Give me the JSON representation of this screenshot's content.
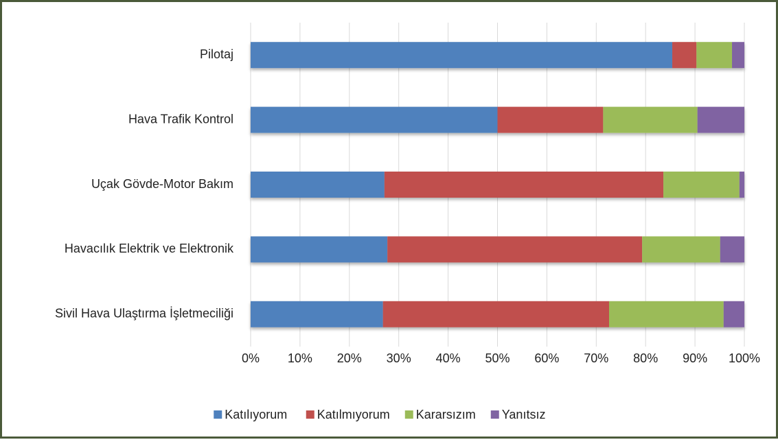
{
  "chart_data": {
    "type": "stacked_bar_horizontal",
    "categories": [
      "Pilotaj",
      "Hava Trafik Kontrol",
      "Uçak Gövde-Motor Bakım",
      "Havacılık Elektrik ve Elektronik",
      "Sivil Hava Ulaştırma İşletmeciliği"
    ],
    "series": [
      {
        "name": "Katılıyorum",
        "color": "#4f81bd",
        "values": [
          85.4,
          50,
          27.1,
          27.7,
          26.8
        ]
      },
      {
        "name": "Katılmıyorum",
        "color": "#c0504d",
        "values": [
          4.9,
          21.4,
          56.5,
          51.6,
          45.8
        ]
      },
      {
        "name": "Kararsızım",
        "color": "#9bbb59",
        "values": [
          7.2,
          19.1,
          15.4,
          15.8,
          23.2
        ]
      },
      {
        "name": "Yanıtsız",
        "color": "#8064a2",
        "values": [
          2.5,
          9.5,
          1.0,
          4.9,
          4.2
        ]
      }
    ],
    "xlim": [
      0,
      100
    ],
    "xticks": [
      {
        "value": 0,
        "label": "0%"
      },
      {
        "value": 10,
        "label": "10%"
      },
      {
        "value": 20,
        "label": "20%"
      },
      {
        "value": 30,
        "label": "30%"
      },
      {
        "value": 40,
        "label": "40%"
      },
      {
        "value": 50,
        "label": "50%"
      },
      {
        "value": 60,
        "label": "60%"
      },
      {
        "value": 70,
        "label": "70%"
      },
      {
        "value": 80,
        "label": "80%"
      },
      {
        "value": 90,
        "label": "90%"
      },
      {
        "value": 100,
        "label": "100%"
      }
    ],
    "grid": true,
    "legend": "bottom"
  }
}
